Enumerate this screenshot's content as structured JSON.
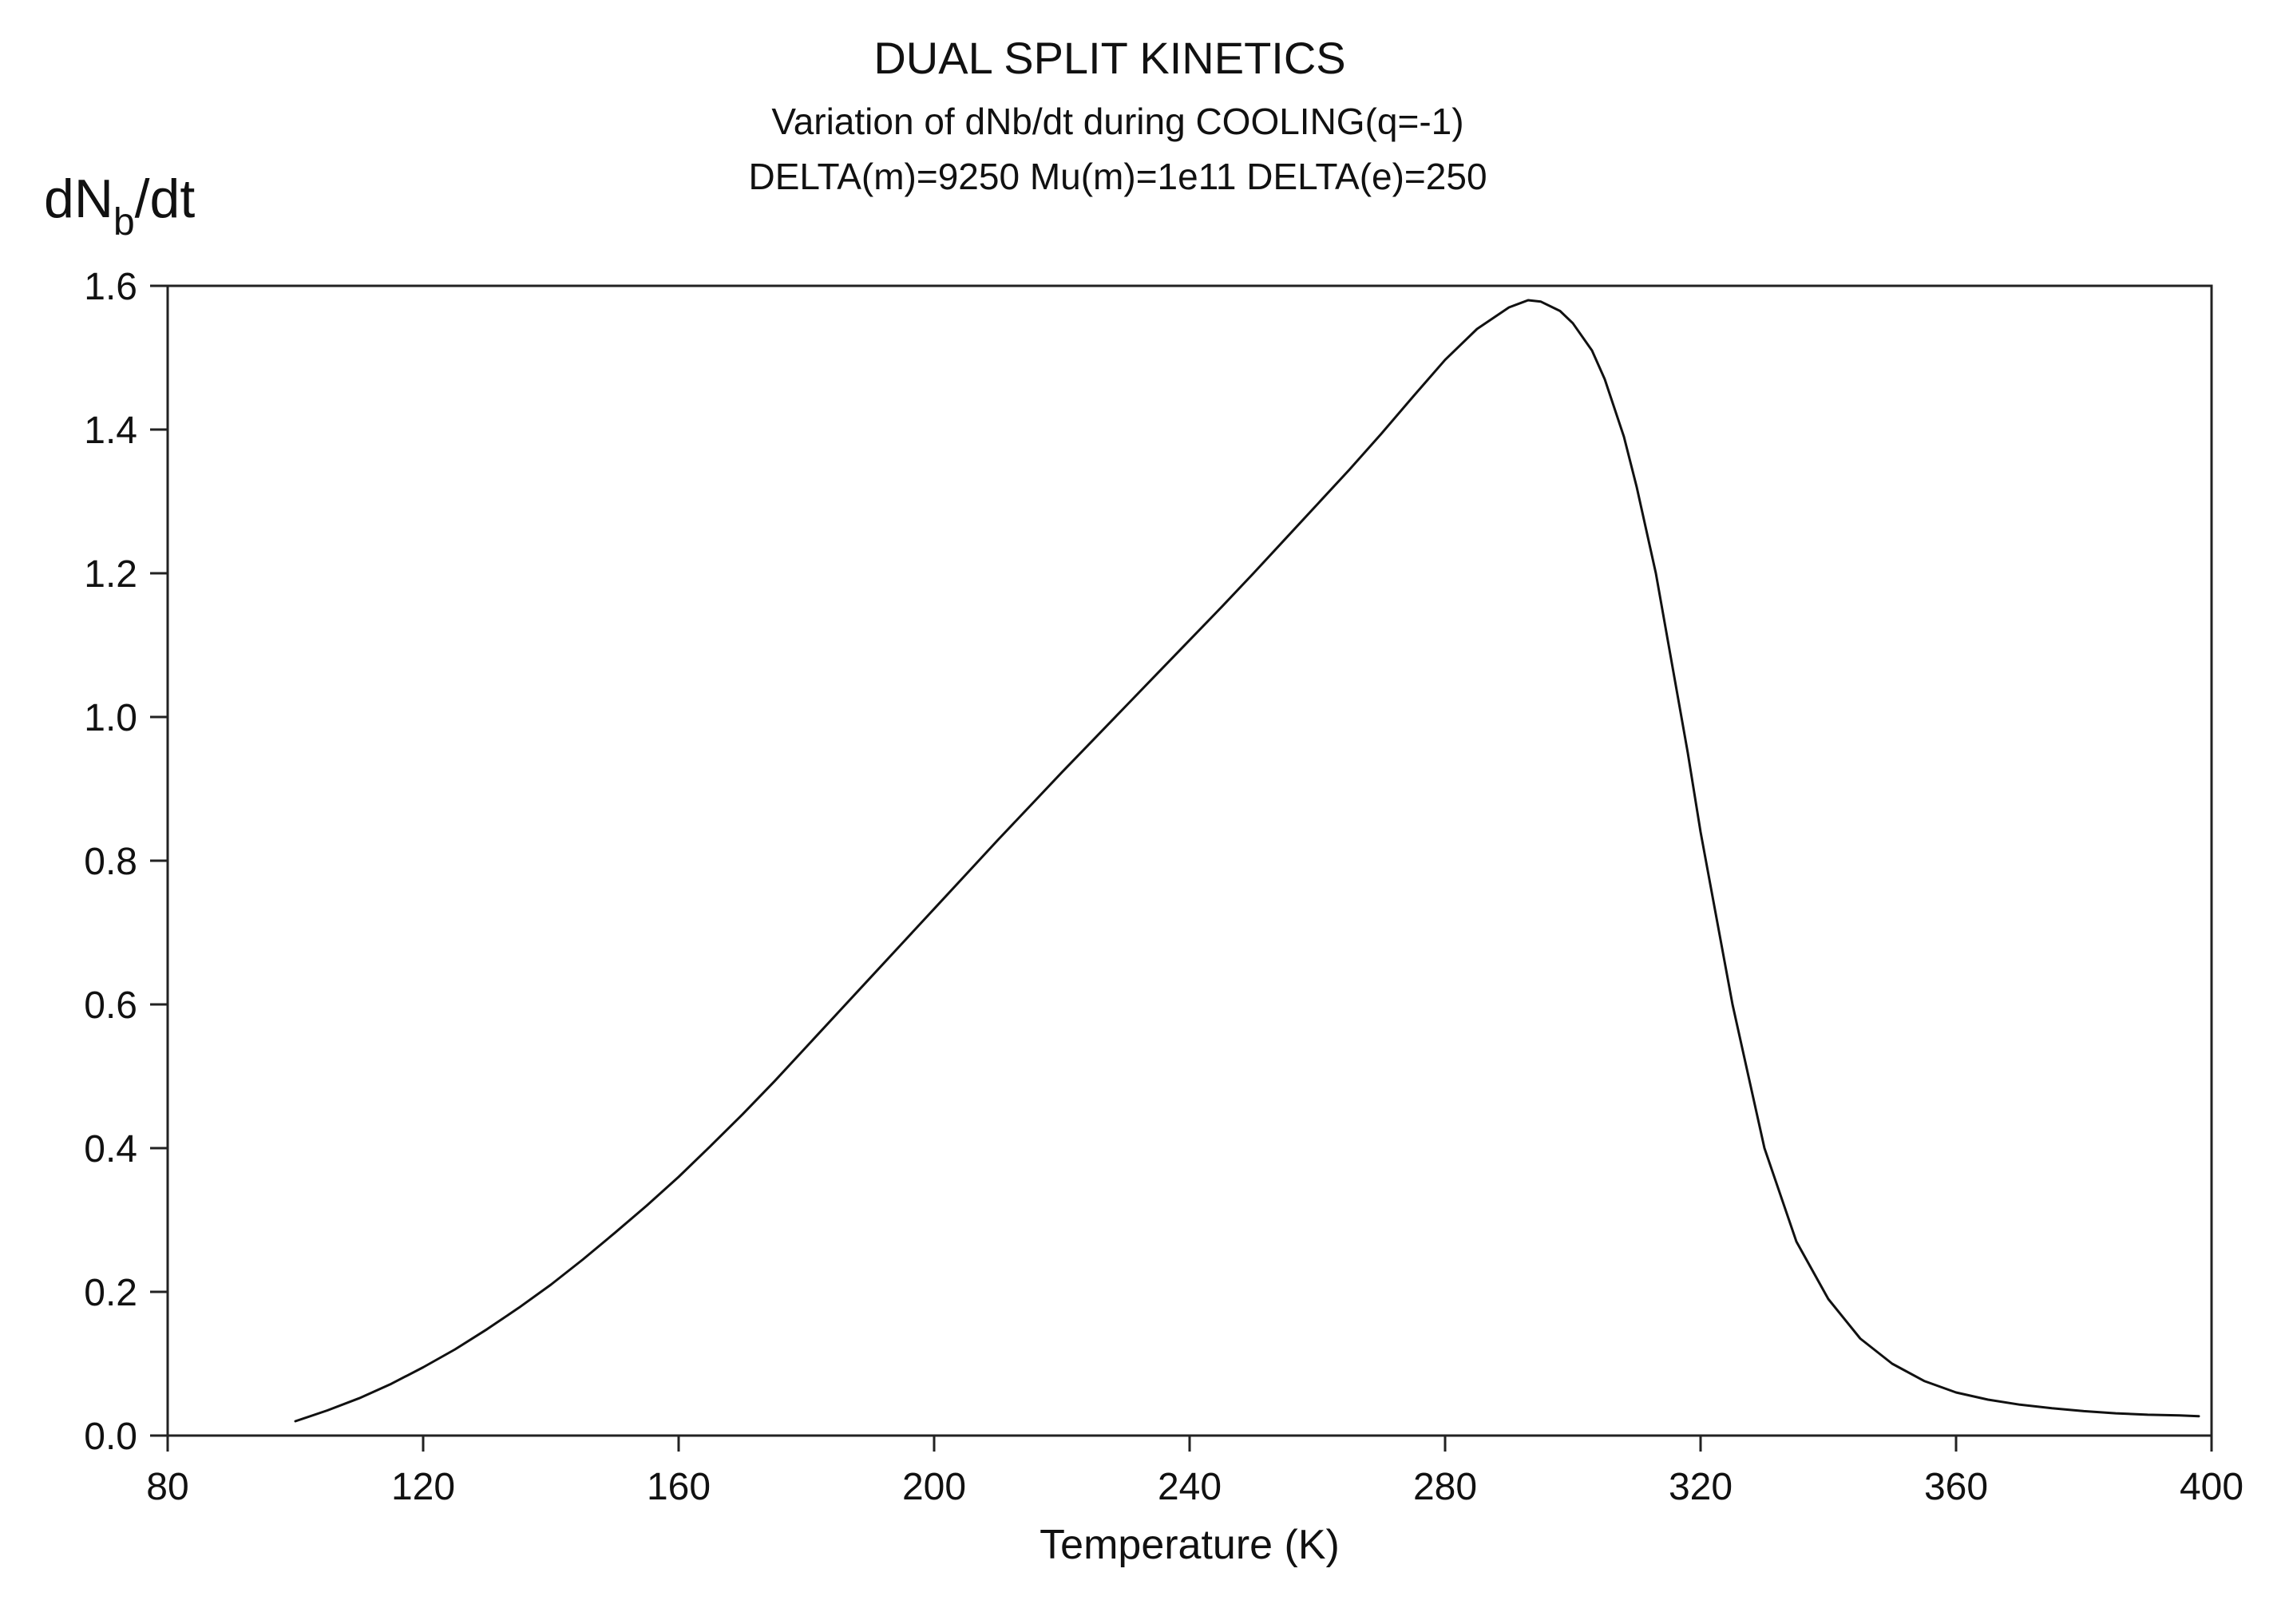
{
  "chart_data": {
    "type": "line",
    "title": "DUAL SPLIT KINETICS",
    "subtitle": "Variation of dNb/dt during COOLING(q=-1)",
    "subtitle2": "DELTA(m)=9250 Mu(m)=1e11 DELTA(e)=250",
    "ylabel": {
      "base": "dN",
      "sub": "b",
      "suffix": "/dt"
    },
    "xlabel": "Temperature (K)",
    "xlim": [
      80,
      400
    ],
    "ylim": [
      0,
      1.6
    ],
    "xticks": [
      "80",
      "120",
      "160",
      "200",
      "240",
      "280",
      "320",
      "360",
      "400"
    ],
    "yticks": [
      "0.0",
      "0.2",
      "0.4",
      "0.6",
      "0.8",
      "1.0",
      "1.2",
      "1.4",
      "1.6"
    ],
    "grid": false,
    "series": [
      {
        "color": "#111111",
        "x": [
          100,
          105,
          110,
          115,
          120,
          125,
          130,
          135,
          140,
          145,
          150,
          155,
          160,
          165,
          170,
          175,
          180,
          185,
          190,
          195,
          200,
          205,
          210,
          215,
          220,
          225,
          230,
          235,
          240,
          245,
          250,
          255,
          260,
          265,
          270,
          275,
          280,
          285,
          290,
          293,
          295,
          298,
          300,
          303,
          305,
          308,
          310,
          313,
          315,
          318,
          320,
          325,
          330,
          335,
          340,
          345,
          350,
          355,
          360,
          365,
          370,
          375,
          380,
          385,
          390,
          395,
          398
        ],
        "y": [
          0.02,
          0.035,
          0.052,
          0.072,
          0.095,
          0.12,
          0.148,
          0.178,
          0.21,
          0.245,
          0.282,
          0.32,
          0.36,
          0.403,
          0.447,
          0.493,
          0.541,
          0.589,
          0.637,
          0.685,
          0.733,
          0.781,
          0.829,
          0.876,
          0.923,
          0.969,
          1.015,
          1.061,
          1.107,
          1.153,
          1.2,
          1.248,
          1.296,
          1.344,
          1.394,
          1.446,
          1.497,
          1.54,
          1.57,
          1.58,
          1.578,
          1.565,
          1.548,
          1.51,
          1.47,
          1.39,
          1.32,
          1.2,
          1.1,
          0.95,
          0.84,
          0.6,
          0.4,
          0.27,
          0.19,
          0.135,
          0.1,
          0.076,
          0.06,
          0.05,
          0.043,
          0.038,
          0.034,
          0.031,
          0.029,
          0.028,
          0.027
        ]
      }
    ]
  }
}
